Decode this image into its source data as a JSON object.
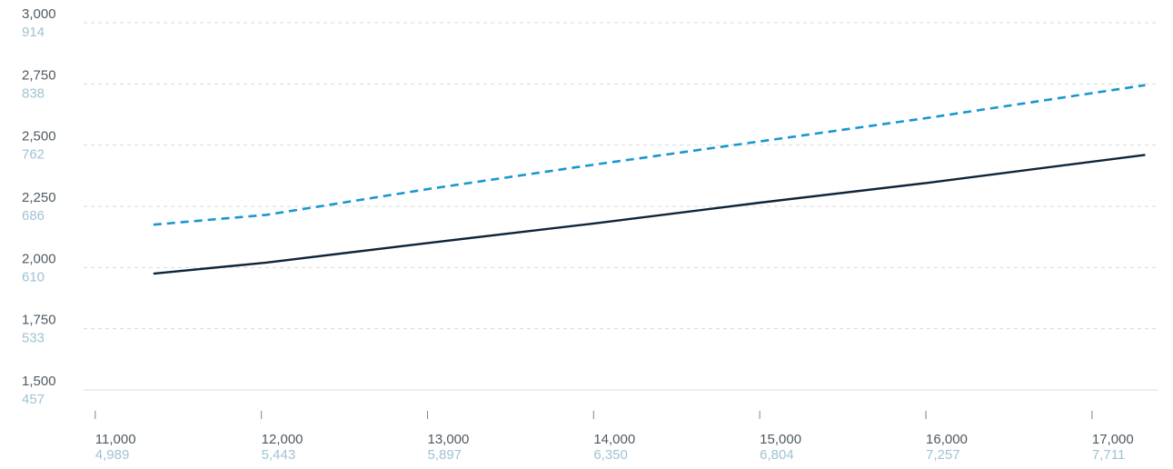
{
  "chart_data": {
    "type": "line",
    "x": [
      11350,
      12030,
      13000,
      14000,
      15000,
      16000,
      17320
    ],
    "series": [
      {
        "line_style": "dashed",
        "color": "#1a96d0",
        "values": [
          2175,
          2215,
          2320,
          2420,
          2515,
          2610,
          2745
        ]
      },
      {
        "line_style": "solid",
        "color": "#0e2539",
        "values": [
          1975,
          2020,
          2100,
          2180,
          2265,
          2345,
          2460
        ]
      }
    ],
    "xlim": [
      10930,
      17400
    ],
    "ylim": [
      1500,
      3000
    ],
    "x_ticks": [
      {
        "value": 11000,
        "label": "11,000",
        "label_secondary": "4,989"
      },
      {
        "value": 12000,
        "label": "12,000",
        "label_secondary": "5,443"
      },
      {
        "value": 13000,
        "label": "13,000",
        "label_secondary": "5,897"
      },
      {
        "value": 14000,
        "label": "14,000",
        "label_secondary": "6,350"
      },
      {
        "value": 15000,
        "label": "15,000",
        "label_secondary": "6,804"
      },
      {
        "value": 16000,
        "label": "16,000",
        "label_secondary": "7,257"
      },
      {
        "value": 17000,
        "label": "17,000",
        "label_secondary": "7,711"
      }
    ],
    "y_ticks": [
      {
        "value": 3000,
        "label": "3,000",
        "label_secondary": "914"
      },
      {
        "value": 2750,
        "label": "2,750",
        "label_secondary": "838"
      },
      {
        "value": 2500,
        "label": "2,500",
        "label_secondary": "762"
      },
      {
        "value": 2250,
        "label": "2,250",
        "label_secondary": "686"
      },
      {
        "value": 2000,
        "label": "2,000",
        "label_secondary": "610"
      },
      {
        "value": 1750,
        "label": "1,750",
        "label_secondary": "533"
      },
      {
        "value": 1500,
        "label": "1,500",
        "label_secondary": "457"
      }
    ],
    "grid": {
      "horizontal": true,
      "style": "dashed",
      "color": "#d6dade"
    },
    "title": "",
    "xlabel": "",
    "ylabel": "",
    "legend": "none"
  }
}
